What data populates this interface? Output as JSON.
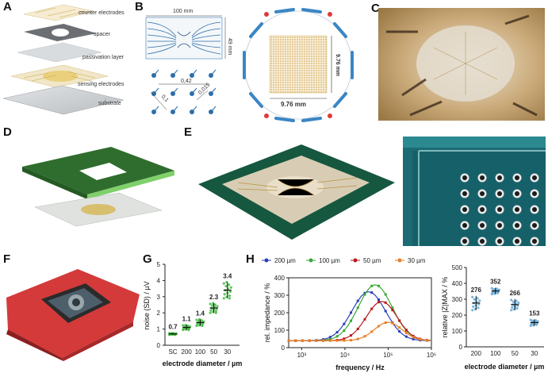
{
  "panels": {
    "a": "A",
    "b": "B",
    "c": "C",
    "d": "D",
    "e": "E",
    "f": "F",
    "g": "G",
    "h": "H"
  },
  "panel_a": {
    "layers": [
      "counter electrodes",
      "spacer",
      "passivation layer",
      "sensing electrodes",
      "substrate"
    ]
  },
  "panel_b": {
    "width_label": "100 mm",
    "height_label": "49 mm",
    "dim1": "0,42",
    "dim2": "0,1",
    "dim3": "0,015",
    "side_label": "9.76 mm",
    "bottom_label": "9.76 mm"
  },
  "chart_data": [
    {
      "id": "G",
      "type": "scatter",
      "ylabel": "noise (SD) / µV",
      "xlabel": "electrode diameter / µm",
      "categories": [
        "SC",
        "200",
        "100",
        "50",
        "30"
      ],
      "means": [
        0.7,
        1.1,
        1.4,
        2.3,
        3.4
      ],
      "mean_labels": [
        "0.7",
        "1.1",
        "1.4",
        "2.3",
        "3.4"
      ],
      "sd": [
        0.05,
        0.15,
        0.2,
        0.3,
        0.5
      ],
      "yticks": [
        "0",
        "1",
        "2",
        "3",
        "4",
        "5"
      ],
      "ylim": [
        0,
        5
      ]
    },
    {
      "id": "H-left",
      "type": "line",
      "ylabel": "rel. impedance / %",
      "xlabel": "frequency / Hz",
      "xscale": "log",
      "xticks": [
        "10³",
        "10⁴",
        "10⁵",
        "10⁶"
      ],
      "yticks": [
        "0",
        "100",
        "200",
        "300",
        "400"
      ],
      "ylim": [
        0,
        400
      ],
      "legend": [
        "200 µm",
        "100 µm",
        "50 µm",
        "30 µm"
      ],
      "series": [
        {
          "name": "200 µm",
          "color": "#2c3fb5",
          "peak_log": 4.55,
          "peak": 320,
          "width": 0.55
        },
        {
          "name": "100 µm",
          "color": "#3aa83a",
          "peak_log": 4.7,
          "peak": 360,
          "width": 0.55
        },
        {
          "name": "50 µm",
          "color": "#b81a1a",
          "peak_log": 4.85,
          "peak": 265,
          "width": 0.5
        },
        {
          "name": "30 µm",
          "color": "#e8802a",
          "peak_log": 5.0,
          "peak": 145,
          "width": 0.45
        }
      ]
    },
    {
      "id": "H-right",
      "type": "scatter",
      "ylabel": "relative |Z|MAX / %",
      "xlabel": "electrode diameter / µm",
      "categories": [
        "200",
        "100",
        "50",
        "30"
      ],
      "means": [
        276,
        352,
        266,
        153
      ],
      "mean_labels": [
        "276",
        "352",
        "266",
        "153"
      ],
      "sd": [
        45,
        20,
        35,
        20
      ],
      "yticks": [
        "0",
        "100",
        "200",
        "300",
        "400",
        "500"
      ],
      "ylim": [
        0,
        500
      ],
      "colors": [
        "#2c3fb5",
        "#3aa83a",
        "#b81a1a",
        "#e8802a"
      ]
    }
  ]
}
